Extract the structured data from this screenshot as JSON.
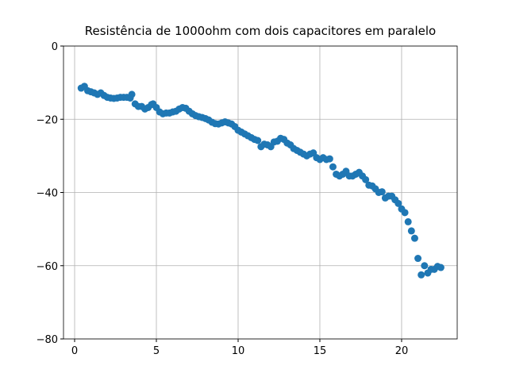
{
  "chart_data": {
    "type": "scatter",
    "title": "Resistência de 1000ohm com dois capacitores em paralelo",
    "color": "#1f77b4",
    "grid": true,
    "xlim": [
      -0.68,
      23.4
    ],
    "ylim": [
      -80,
      0
    ],
    "xticks": [
      0,
      5,
      10,
      15,
      20
    ],
    "yticks": [
      {
        "value": -80,
        "label": "−80"
      },
      {
        "value": -60,
        "label": "−60"
      },
      {
        "value": -40,
        "label": "−40"
      },
      {
        "value": -20,
        "label": "−20"
      },
      0
    ],
    "x": [
      0.4,
      0.6,
      0.8,
      1.0,
      1.2,
      1.4,
      1.6,
      1.8,
      2.0,
      2.2,
      2.4,
      2.6,
      2.8,
      3.0,
      3.2,
      3.4,
      3.5,
      3.7,
      3.9,
      4.1,
      4.3,
      4.5,
      4.7,
      4.8,
      5.0,
      5.2,
      5.4,
      5.6,
      5.8,
      6.0,
      6.2,
      6.4,
      6.6,
      6.8,
      7.0,
      7.2,
      7.4,
      7.6,
      7.8,
      8.0,
      8.2,
      8.4,
      8.6,
      8.8,
      9.0,
      9.2,
      9.4,
      9.6,
      9.8,
      10.0,
      10.2,
      10.4,
      10.6,
      10.8,
      11.0,
      11.2,
      11.4,
      11.6,
      11.8,
      12.0,
      12.2,
      12.4,
      12.6,
      12.8,
      13.0,
      13.2,
      13.4,
      13.6,
      13.8,
      14.0,
      14.2,
      14.4,
      14.6,
      14.8,
      15.0,
      15.2,
      15.4,
      15.6,
      15.8,
      16.0,
      16.2,
      16.4,
      16.6,
      16.8,
      17.0,
      17.2,
      17.4,
      17.6,
      17.8,
      18.0,
      18.2,
      18.4,
      18.6,
      18.8,
      19.0,
      19.2,
      19.4,
      19.6,
      19.8,
      20.0,
      20.2,
      20.4,
      20.6,
      20.8,
      21.0,
      21.2,
      21.4,
      21.6,
      21.8,
      22.0,
      22.2,
      22.4
    ],
    "values": [
      -11.5,
      -11,
      -12.2,
      -12.5,
      -12.8,
      -13.2,
      -12.8,
      -13.5,
      -14,
      -14.2,
      -14.3,
      -14.2,
      -14,
      -14,
      -14,
      -14.2,
      -13.2,
      -15.8,
      -16.5,
      -16.5,
      -17.2,
      -16.8,
      -16,
      -15.8,
      -16.8,
      -18,
      -18.5,
      -18.3,
      -18.3,
      -18,
      -17.8,
      -17.2,
      -16.8,
      -17,
      -17.8,
      -18.5,
      -19,
      -19.3,
      -19.5,
      -19.8,
      -20.2,
      -20.8,
      -21.2,
      -21.3,
      -21,
      -20.7,
      -21,
      -21.3,
      -22,
      -23,
      -23.5,
      -24,
      -24.5,
      -25,
      -25.5,
      -25.8,
      -27.5,
      -26.8,
      -27,
      -27.5,
      -26.2,
      -26,
      -25.2,
      -25.5,
      -26.5,
      -27,
      -28,
      -28.5,
      -29,
      -29.5,
      -30,
      -29.5,
      -29.2,
      -30.5,
      -31,
      -30.5,
      -31,
      -30.8,
      -33,
      -35,
      -35.5,
      -35,
      -34.2,
      -35.5,
      -35.5,
      -35,
      -34.5,
      -35.5,
      -36.5,
      -38,
      -38.2,
      -39,
      -40,
      -39.8,
      -41.5,
      -41,
      -41,
      -42,
      -43,
      -44.5,
      -45.5,
      -48,
      -50.5,
      -52.5,
      -58,
      -62.5,
      -60,
      -62,
      -61,
      -61,
      -60.2,
      -60.5
    ]
  }
}
